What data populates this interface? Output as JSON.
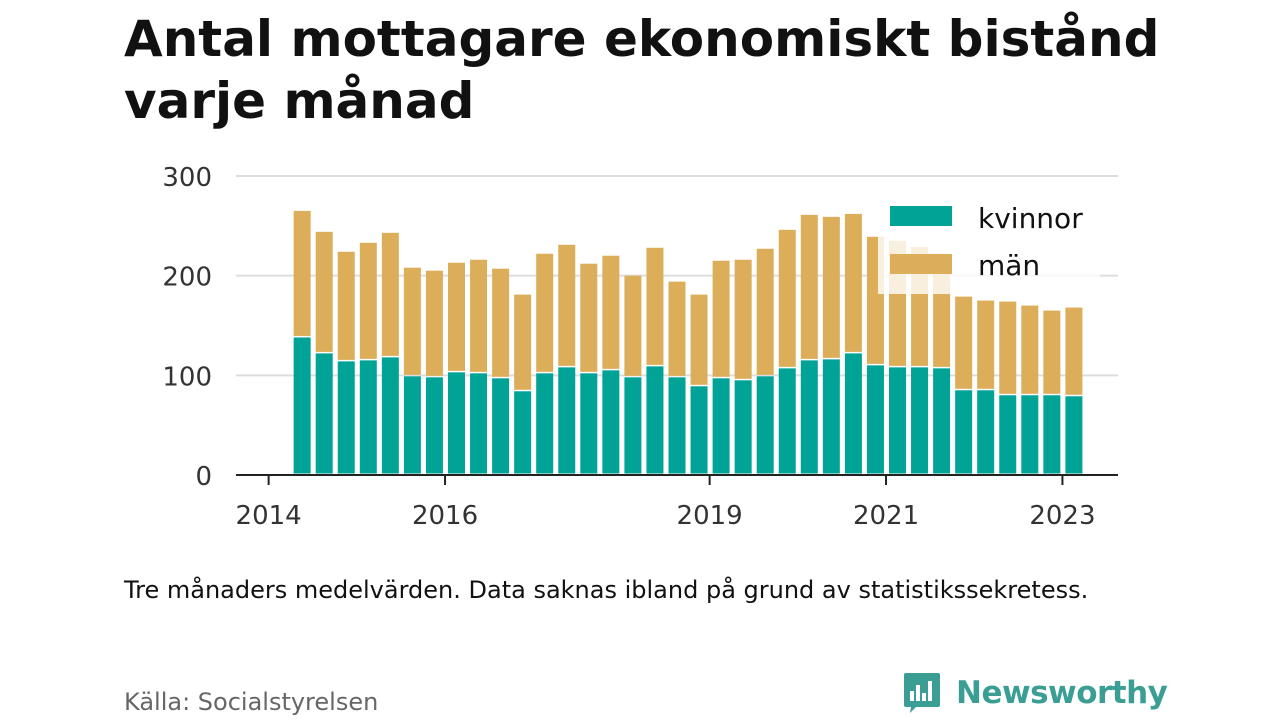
{
  "title": "Antal mottagare ekonomiskt bistånd varje månad",
  "note": "Tre månaders medelvärden. Data saknas ibland på grund av statistikssekretess.",
  "source": "Källa: Socialstyrelsen",
  "brand": {
    "name": "Newsworthy",
    "icon": "bar-chart-speech-bubble-icon"
  },
  "colors": {
    "kvinnor": "#00a396",
    "man": "#dcae5a",
    "axis": "#222222",
    "grid": "#dddddd"
  },
  "chart_data": {
    "type": "bar",
    "stacked": true,
    "title": "Antal mottagare ekonomiskt bistånd varje månad",
    "x_ticks": [
      "2014",
      "2016",
      "2019",
      "2021",
      "2023"
    ],
    "y_ticks": [
      "0",
      "100",
      "200",
      "300"
    ],
    "ylim": [
      0,
      300
    ],
    "grid": true,
    "legend": "top-right",
    "x": [
      2014.5,
      2014.75,
      2015.0,
      2015.25,
      2015.5,
      2015.75,
      2016.0,
      2016.25,
      2016.5,
      2016.75,
      2017.0,
      2017.25,
      2017.5,
      2017.75,
      2018.0,
      2018.25,
      2018.5,
      2018.75,
      2019.0,
      2019.25,
      2019.5,
      2019.75,
      2020.0,
      2020.25,
      2020.5,
      2020.75,
      2021.0,
      2021.25,
      2021.5,
      2021.75,
      2022.0,
      2022.25,
      2022.5,
      2022.75,
      2023.0,
      2023.25
    ],
    "series": [
      {
        "name": "kvinnor",
        "values": [
          138,
          122,
          114,
          115,
          118,
          99,
          98,
          103,
          102,
          97,
          84,
          102,
          108,
          102,
          105,
          98,
          109,
          98,
          89,
          97,
          95,
          99,
          107,
          115,
          116,
          122,
          110,
          108,
          108,
          107,
          85,
          85,
          80,
          80,
          80,
          79
        ]
      },
      {
        "name": "män",
        "values": [
          127,
          122,
          110,
          118,
          125,
          109,
          107,
          110,
          114,
          110,
          97,
          120,
          123,
          110,
          115,
          102,
          119,
          96,
          92,
          118,
          121,
          128,
          139,
          146,
          143,
          140,
          129,
          127,
          121,
          108,
          94,
          90,
          94,
          90,
          85,
          89
        ]
      }
    ]
  }
}
